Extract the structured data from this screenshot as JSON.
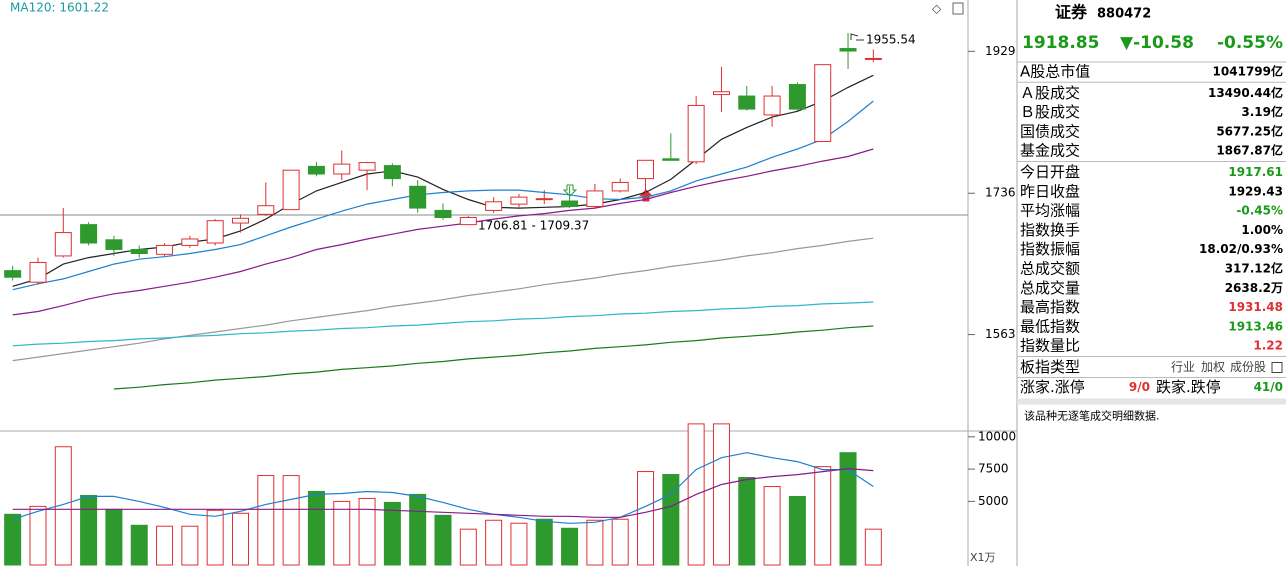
{
  "chart_data": [
    {
      "type": "candlestick",
      "legend": "MA120: 1601.22",
      "log": true,
      "ylim": [
        1456,
        2004
      ],
      "yticks": [
        1563,
        1736,
        1929
      ],
      "up_color": "#e03030",
      "down_color": "#2e9a2e",
      "open": [
        1639,
        1625,
        1657,
        1696,
        1677,
        1665,
        1659,
        1670,
        1673,
        1698,
        1709,
        1715,
        1771,
        1761,
        1766,
        1772,
        1745,
        1714,
        1696,
        1714,
        1722,
        1728,
        1726,
        1719,
        1739,
        1755,
        1781,
        1777,
        1868,
        1866,
        1840,
        1882,
        1804,
        1933,
        1917.61
      ],
      "high": [
        1645,
        1655,
        1717,
        1699,
        1682,
        1670,
        1673,
        1682,
        1703,
        1709,
        1750,
        1766,
        1777,
        1792,
        1777,
        1775,
        1753,
        1723,
        1707,
        1731,
        1735,
        1740,
        1745,
        1748,
        1755,
        1779,
        1815,
        1866,
        1907,
        1880,
        1880,
        1885,
        1910,
        1955.54,
        1931.48
      ],
      "low": [
        1627,
        1622,
        1655,
        1670,
        1657,
        1655,
        1657,
        1667,
        1670,
        1686,
        1707,
        1715,
        1758,
        1753,
        1740,
        1745,
        1711,
        1702,
        1696,
        1711,
        1717,
        1722,
        1717,
        1716,
        1737,
        1731,
        1779,
        1774,
        1844,
        1846,
        1824,
        1846,
        1804,
        1904,
        1913.46
      ],
      "close": [
        1631,
        1649,
        1686,
        1673,
        1665,
        1660,
        1670,
        1678,
        1701,
        1704,
        1720,
        1766,
        1761,
        1774,
        1776,
        1755,
        1717,
        1705,
        1705,
        1725,
        1731,
        1729,
        1719,
        1739,
        1750,
        1779,
        1779,
        1853,
        1872,
        1848,
        1866,
        1848,
        1910,
        1929.43,
        1918.85
      ],
      "series": [
        {
          "color": "#222222",
          "values": [
            1620,
            1629,
            1647,
            1655,
            1660,
            1665,
            1668,
            1674,
            1678,
            1688,
            1703,
            1722,
            1739,
            1750,
            1761,
            1765,
            1757,
            1741,
            1728,
            1718,
            1717,
            1718,
            1719,
            1722,
            1728,
            1737,
            1754,
            1780,
            1807,
            1823,
            1837,
            1845,
            1859,
            1878,
            1895
          ]
        },
        {
          "color": "#1f7fd0",
          "values": [
            1616,
            1623,
            1629,
            1638,
            1647,
            1653,
            1656,
            1660,
            1665,
            1671,
            1682,
            1693,
            1703,
            1713,
            1722,
            1728,
            1734,
            1737,
            1739,
            1740,
            1740,
            1737,
            1734,
            1729,
            1728,
            1731,
            1739,
            1752,
            1761,
            1770,
            1783,
            1794,
            1807,
            1831,
            1859
          ]
        },
        {
          "color": "#8a1a8a",
          "values": [
            1586,
            1590,
            1597,
            1605,
            1611,
            1615,
            1620,
            1625,
            1631,
            1638,
            1647,
            1655,
            1665,
            1671,
            1678,
            1684,
            1690,
            1694,
            1698,
            1703,
            1707,
            1710,
            1714,
            1717,
            1723,
            1728,
            1737,
            1745,
            1752,
            1758,
            1765,
            1771,
            1778,
            1784,
            1794
          ]
        },
        {
          "color": "#999999",
          "values": [
            1533,
            1537,
            1541,
            1545,
            1549,
            1553,
            1558,
            1562,
            1566,
            1570,
            1574,
            1579,
            1583,
            1587,
            1591,
            1596,
            1600,
            1604,
            1609,
            1613,
            1617,
            1622,
            1626,
            1630,
            1635,
            1639,
            1644,
            1648,
            1652,
            1657,
            1661,
            1666,
            1670,
            1675,
            1679
          ]
        },
        {
          "color": "#2bb8c8",
          "values": [
            1550,
            1552,
            1553,
            1555,
            1556,
            1558,
            1559,
            1561,
            1562,
            1564,
            1565,
            1567,
            1568,
            1570,
            1571,
            1573,
            1574,
            1576,
            1578,
            1579,
            1581,
            1582,
            1584,
            1585,
            1587,
            1588,
            1590,
            1591,
            1593,
            1594,
            1596,
            1597,
            1599,
            1600,
            1601.22
          ]
        },
        {
          "color": "#1a7a1a",
          "values": [
            null,
            null,
            null,
            null,
            1501,
            1503,
            1506,
            1508,
            1511,
            1513,
            1515,
            1518,
            1520,
            1523,
            1525,
            1527,
            1530,
            1532,
            1535,
            1537,
            1539,
            1542,
            1544,
            1547,
            1549,
            1551,
            1554,
            1556,
            1559,
            1561,
            1563,
            1566,
            1568,
            1571,
            1573
          ]
        }
      ],
      "annotations": [
        "1706.81 - 1709.37"
      ]
    },
    {
      "type": "bar",
      "unit": "X1万",
      "ylim": [
        0,
        11300
      ],
      "yticks": [
        5000,
        7500,
        10000
      ],
      "hollow_color": "#e03030",
      "values": [
        4000,
        4615,
        9230,
        5460,
        4385,
        3150,
        3080,
        3080,
        4310,
        4080,
        7000,
        7000,
        5770,
        5000,
        5230,
        4920,
        5540,
        3920,
        2850,
        3540,
        3310,
        3620,
        2920,
        3540,
        3620,
        7310,
        7080,
        11000,
        11000,
        6850,
        6150,
        5380,
        7690,
        8770,
        2850
      ],
      "colors": [
        "#2e9a2e",
        "#e03030",
        "#e03030",
        "#2e9a2e",
        "#2e9a2e",
        "#2e9a2e",
        "#e03030",
        "#e03030",
        "#e03030",
        "#e03030",
        "#e03030",
        "#e03030",
        "#2e9a2e",
        "#e03030",
        "#e03030",
        "#2e9a2e",
        "#2e9a2e",
        "#2e9a2e",
        "#e03030",
        "#e03030",
        "#e03030",
        "#2e9a2e",
        "#2e9a2e",
        "#e03030",
        "#e03030",
        "#e03030",
        "#2e9a2e",
        "#e03030",
        "#e03030",
        "#2e9a2e",
        "#e03030",
        "#2e9a2e",
        "#e03030",
        "#2e9a2e",
        "#e03030"
      ],
      "series": [
        {
          "color": "#1f7fd0",
          "values": [
            3615,
            4231,
            4769,
            5385,
            5385,
            5000,
            4538,
            4000,
            3846,
            4231,
            4769,
            5154,
            5538,
            5615,
            5769,
            5692,
            5385,
            4923,
            4385,
            4000,
            3769,
            3462,
            3308,
            3385,
            3769,
            4615,
            5538,
            7462,
            8385,
            8769,
            8385,
            8077,
            7462,
            7462,
            6154
          ]
        },
        {
          "color": "#8a1a8a",
          "values": [
            4385,
            4385,
            4385,
            4385,
            4385,
            4385,
            4385,
            4385,
            4385,
            4385,
            4385,
            4385,
            4385,
            4385,
            4385,
            4308,
            4231,
            4154,
            4077,
            4000,
            3923,
            3846,
            3846,
            3769,
            3769,
            4154,
            4615,
            5538,
            6308,
            6692,
            6923,
            7077,
            7308,
            7538,
            7385
          ]
        }
      ]
    }
  ],
  "panel": {
    "title": "证券",
    "code": "880472",
    "price": "1918.85",
    "change": "▼-10.58",
    "change_pct": "-0.55%",
    "color": "#1a9a1a",
    "groups": [
      [
        {
          "label": "A股总市值",
          "value": "1041799亿",
          "color": "#000000"
        }
      ],
      [
        {
          "label": "Ａ股成交",
          "value": "13490.44亿",
          "color": "#000000"
        },
        {
          "label": "Ｂ股成交",
          "value": "3.19亿",
          "color": "#000000"
        },
        {
          "label": "国债成交",
          "value": "5677.25亿",
          "color": "#000000"
        },
        {
          "label": "基金成交",
          "value": "1867.87亿",
          "color": "#000000"
        }
      ],
      [
        {
          "label": "今日开盘",
          "value": "1917.61",
          "color": "#1a9a1a"
        },
        {
          "label": "昨日收盘",
          "value": "1929.43",
          "color": "#000000"
        },
        {
          "label": "平均涨幅",
          "value": "-0.45%",
          "color": "#1a9a1a"
        },
        {
          "label": "指数换手",
          "value": "1.00%",
          "color": "#000000"
        },
        {
          "label": "指数振幅",
          "value": "18.02/0.93%",
          "color": "#000000"
        },
        {
          "label": "总成交额",
          "value": "317.12亿",
          "color": "#000000"
        },
        {
          "label": "总成交量",
          "value": "2638.2万",
          "color": "#000000"
        },
        {
          "label": "最高指数",
          "value": "1931.48",
          "color": "#e03030"
        },
        {
          "label": "最低指数",
          "value": "1913.46",
          "color": "#1a9a1a"
        },
        {
          "label": "指数量比",
          "value": "1.22",
          "color": "#e03030"
        }
      ]
    ],
    "sector_type": {
      "label": "板指类型",
      "options": [
        "行业",
        "加权",
        "成份股"
      ]
    },
    "breadth": {
      "up_label": "涨家.涨停",
      "up": "9/0",
      "down_label": "跌家.跌停",
      "down": "41/0"
    },
    "message": "该品种无逐笔成交明细数据."
  }
}
